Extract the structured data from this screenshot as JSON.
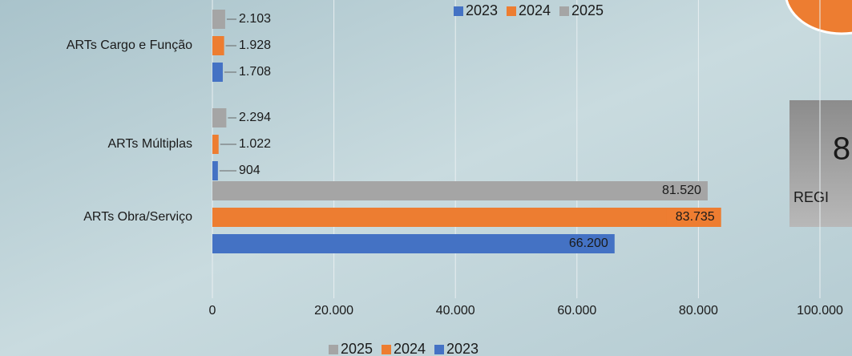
{
  "chart_data": {
    "type": "hbar",
    "categories": [
      "ARTs Cargo e Função",
      "ARTs Múltiplas",
      "ARTs Obra/Serviço"
    ],
    "series": [
      {
        "name": "2023",
        "color": "#4472c4",
        "values": [
          1708,
          904,
          66200
        ],
        "value_labels": [
          "1.708",
          "904",
          "66.200"
        ]
      },
      {
        "name": "2024",
        "color": "#ed7d31",
        "values": [
          1928,
          1022,
          83735
        ],
        "value_labels": [
          "1.928",
          "1.022",
          "83.735"
        ]
      },
      {
        "name": "2025",
        "color": "#a5a5a5",
        "values": [
          2103,
          2294,
          81520
        ],
        "value_labels": [
          "2.103",
          "2.294",
          "81.520"
        ]
      }
    ],
    "xlim": [
      0,
      100000
    ],
    "xticks": [
      0,
      {
        "value": 20000,
        "label": "20.000"
      },
      {
        "value": 40000,
        "label": "40.000"
      },
      {
        "value": 60000,
        "label": "60.000"
      },
      {
        "value": 80000,
        "label": "80.000"
      },
      {
        "value": 100000,
        "label": "100.000"
      }
    ],
    "grid": true,
    "annotations": [
      "8",
      "REGI"
    ]
  }
}
